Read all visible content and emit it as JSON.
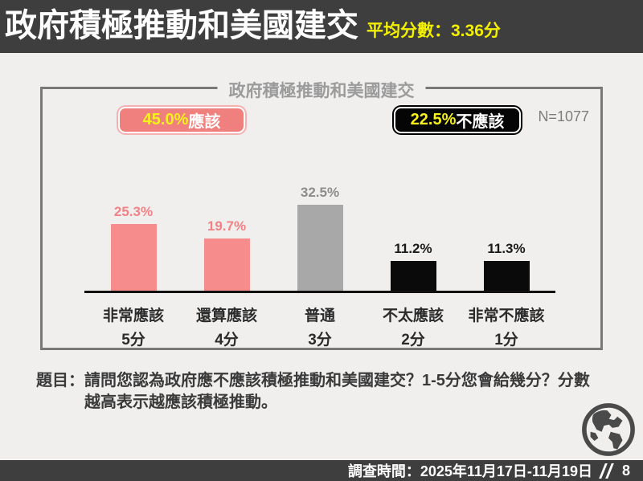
{
  "header": {
    "title": "政府積極推動和美國建交",
    "mean_label": "平均分數：3.36分"
  },
  "panel": {
    "title": "政府積極推動和美國建交",
    "n_label": "N=1077",
    "badge_should": {
      "percent": "45.0%",
      "label": "應該"
    },
    "badge_should_not": {
      "percent": "22.5%",
      "label": "不應該"
    }
  },
  "chart_data": {
    "type": "bar",
    "title": "政府積極推動和美國建交",
    "n": 1077,
    "categories": [
      "非常應該",
      "還算應該",
      "普通",
      "不太應該",
      "非常不應該"
    ],
    "score_labels": [
      "5分",
      "4分",
      "3分",
      "2分",
      "1分"
    ],
    "values": [
      25.3,
      19.7,
      32.5,
      11.2,
      11.3
    ],
    "value_labels": [
      "25.3%",
      "19.7%",
      "32.5%",
      "11.2%",
      "11.3%"
    ],
    "bar_colors": [
      "#F78C8C",
      "#F78C8C",
      "#A9A8A8",
      "#0A0A0A",
      "#0A0A0A"
    ],
    "value_label_colors": [
      "#F08285",
      "#F08285",
      "#8C8C8C",
      "#1A1A1A",
      "#1A1A1A"
    ],
    "summary": {
      "should_percent": 45.0,
      "should_not_percent": 22.5,
      "mean_score": 3.36
    },
    "ylim": [
      0,
      35
    ],
    "grid": false,
    "legend_position": "none"
  },
  "question": {
    "prefix": "題目：",
    "text": "請問您認為政府應不應該積極推動和美國建交？1-5分您會給幾分？分數越高表示越應該積極推動。"
  },
  "footer": {
    "survey_time": "調查時間：2025年11月17日-11月19日",
    "page_number": "8"
  },
  "colors": {
    "header_bg": "#3E3E3E",
    "accent_yellow": "#F3F000",
    "accent_pink": "#F78C8C",
    "bar_gray": "#A9A8A8",
    "bar_black": "#0A0A0A",
    "panel_border": "#787878"
  }
}
